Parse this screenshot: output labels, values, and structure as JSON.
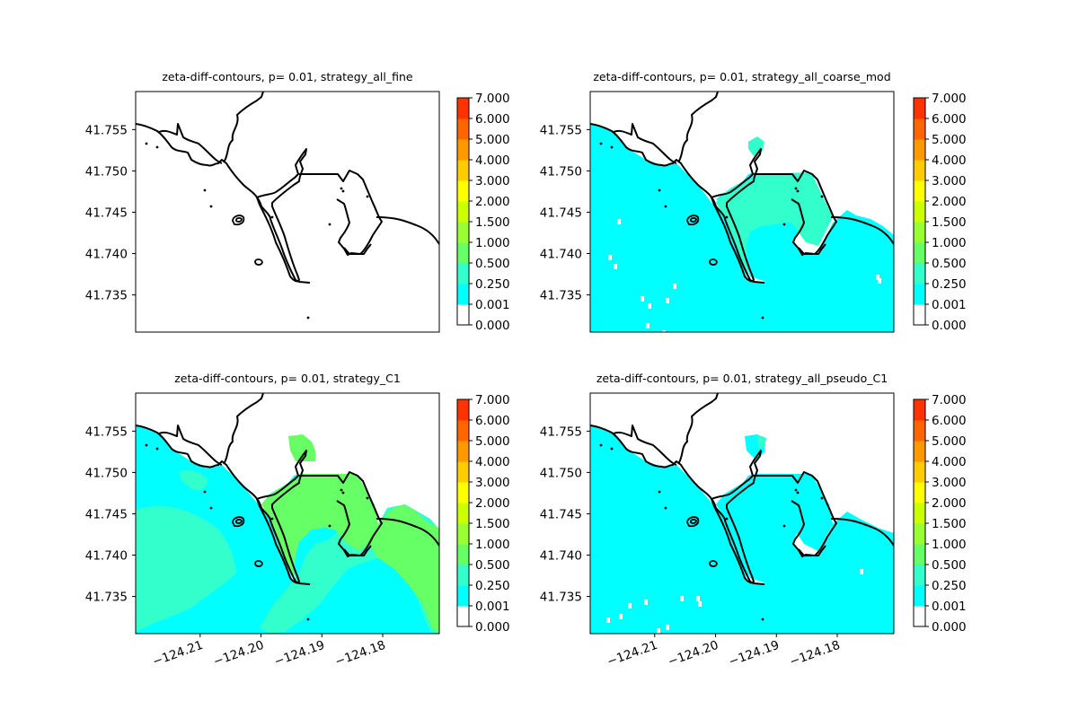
{
  "chart_data": {
    "type": "heatmap",
    "colorbar": {
      "ticks": [
        "0.000",
        "0.001",
        "0.250",
        "0.500",
        "1.000",
        "1.500",
        "2.000",
        "3.000",
        "4.000",
        "5.000",
        "6.000",
        "7.000"
      ],
      "colors": [
        "#ffffff",
        "#00ffff",
        "#33ffcc",
        "#66ff66",
        "#99ff33",
        "#ccff00",
        "#ffff00",
        "#ffcc00",
        "#ff9900",
        "#ff6600",
        "#ff3300",
        "#ff0000"
      ]
    },
    "xlim": [
      -124.2206,
      -124.1707
    ],
    "ylim": [
      41.7305,
      41.7596
    ],
    "y_ticks": [
      "41.735",
      "41.740",
      "41.745",
      "41.750",
      "41.755"
    ],
    "y_tick_values": [
      41.735,
      41.74,
      41.745,
      41.75,
      41.755
    ],
    "x_ticks": [
      "−124.21",
      "−124.20",
      "−124.19",
      "−124.18"
    ],
    "x_tick_values": [
      -124.21,
      -124.2,
      -124.19,
      -124.18
    ],
    "panels": [
      {
        "title": "zeta-diff-contours, p= 0.01, strategy_all_fine",
        "x_axis_shown": false,
        "fill": "none"
      },
      {
        "title": "zeta-diff-contours, p= 0.01, strategy_all_coarse_mod",
        "x_axis_shown": false,
        "fill": "coarse"
      },
      {
        "title": "zeta-diff-contours, p= 0.01, strategy_C1",
        "x_axis_shown": true,
        "fill": "c1"
      },
      {
        "title": "zeta-diff-contours, p= 0.01, strategy_all_pseudo_C1",
        "x_axis_shown": true,
        "fill": "pseudo"
      }
    ]
  }
}
